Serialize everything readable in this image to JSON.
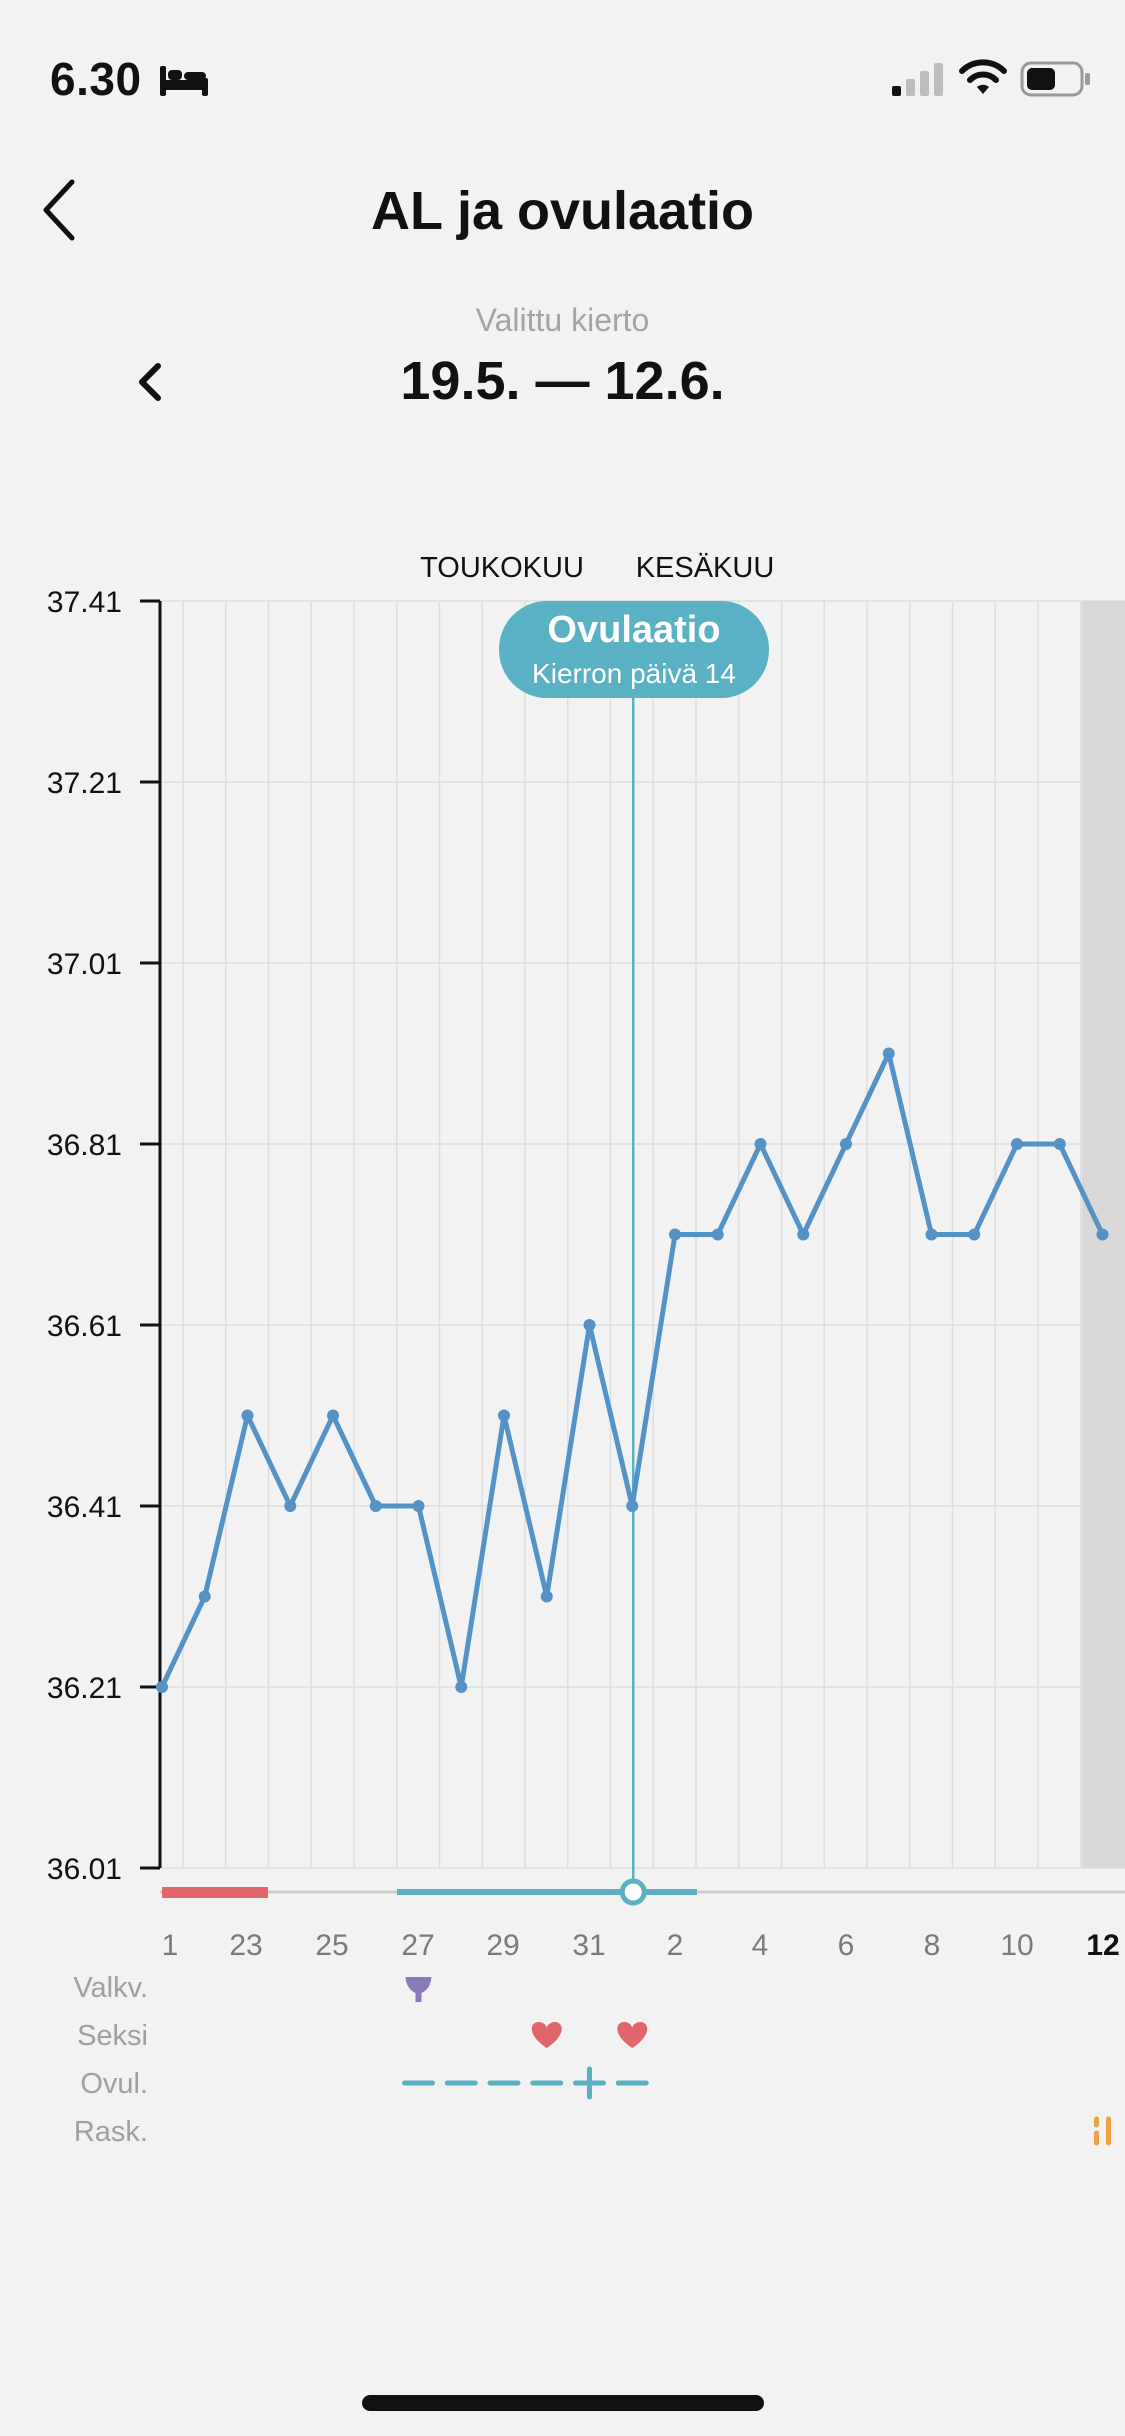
{
  "status_bar": {
    "time": "6.30",
    "icons": [
      "bed-icon",
      "signal-icon",
      "wifi-icon",
      "battery-icon"
    ]
  },
  "nav": {
    "title": "AL ja ovulaatio",
    "back_icon": "chevron-left-icon"
  },
  "cycle": {
    "caption": "Valittu kierto",
    "range": "19.5. — 12.6.",
    "prev_icon": "chevron-left-icon"
  },
  "chart_data": {
    "type": "line",
    "months": [
      {
        "label": "TOUKOKUU",
        "x": "25"
      },
      {
        "label": "KESÄKUU",
        "x": "1"
      }
    ],
    "y_ticks": [
      "37.41",
      "37.21",
      "37.01",
      "36.81",
      "36.61",
      "36.41",
      "36.21",
      "36.01"
    ],
    "ylim": [
      36.01,
      37.41
    ],
    "x_tick_labels": [
      "1",
      "23",
      "25",
      "27",
      "29",
      "31",
      "2",
      "4",
      "6",
      "8",
      "10",
      "12"
    ],
    "series": [
      {
        "color": "#5592c6",
        "x": [
          "21.5.",
          "22.5.",
          "23.5.",
          "24.5.",
          "25.5.",
          "26.5.",
          "27.5.",
          "28.5.",
          "29.5.",
          "30.5.",
          "31.5.",
          "1.6.",
          "2.6.",
          "3.6.",
          "4.6.",
          "5.6.",
          "6.6.",
          "7.6.",
          "8.6.",
          "9.6.",
          "10.6.",
          "11.6.",
          "12.6."
        ],
        "values": [
          36.21,
          36.31,
          36.51,
          36.41,
          36.51,
          36.41,
          36.41,
          36.21,
          36.51,
          36.31,
          36.61,
          36.41,
          36.71,
          36.71,
          36.81,
          36.71,
          36.81,
          36.91,
          36.71,
          36.71,
          36.81,
          36.81,
          36.71
        ]
      }
    ],
    "ovulation": {
      "title": "Ovulaatio",
      "subtitle": "Kierron päivä 14",
      "date": "1.6.",
      "color": "#5ab1c3"
    },
    "period_color": "#e0666b",
    "rows": [
      {
        "label": "Valkv.",
        "icon": "cervical-fluid-icon",
        "days": [
          "27.5."
        ],
        "color": "#8b7bb8"
      },
      {
        "label": "Seksi",
        "icon": "heart-icon",
        "days": [
          "30.5.",
          "1.6."
        ],
        "color": "#e0666b"
      },
      {
        "label": "Ovul.",
        "icon": "ovulation-test-icon",
        "days": [
          "27.5.",
          "28.5.",
          "29.5.",
          "30.5.",
          "31.5.",
          "1.6."
        ],
        "color": "#5ab1c3"
      },
      {
        "label": "Rask.",
        "icon": "pregnancy-test-icon",
        "days": [
          "12.6."
        ],
        "color": "#f0a040"
      }
    ],
    "grid": true
  }
}
